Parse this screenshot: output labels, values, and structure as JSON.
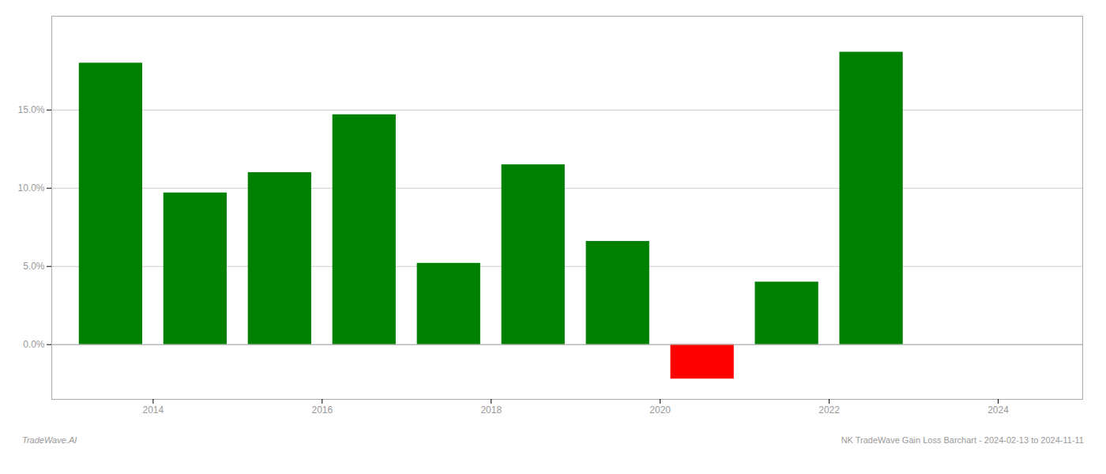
{
  "chart_data": {
    "type": "bar",
    "title": "NK TradeWave Gain Loss Barchart - 2024-02-13 to 2024-11-11",
    "annotations": [
      "TradeWave.AI"
    ],
    "x": [
      2013.5,
      2014.5,
      2015.5,
      2016.5,
      2017.5,
      2018.5,
      2019.5,
      2020.5,
      2021.5,
      2022.5,
      2023.5
    ],
    "values": [
      18.0,
      9.7,
      11.0,
      14.7,
      5.2,
      11.5,
      6.6,
      -2.2,
      4.0,
      18.7,
      0.0
    ],
    "colors": [
      "#008000",
      "#008000",
      "#008000",
      "#008000",
      "#008000",
      "#008000",
      "#008000",
      "#ff0000",
      "#008000",
      "#008000",
      "#008000"
    ],
    "xlim": [
      2012.8,
      2025.0
    ],
    "xticks": [
      2014,
      2016,
      2018,
      2020,
      2022,
      2024
    ],
    "ylim": [
      -3.5,
      21.0
    ],
    "yticks": [
      {
        "value": 0.0,
        "label": "0.0%"
      },
      {
        "value": 5.0,
        "label": "5.0%"
      },
      {
        "value": 10.0,
        "label": "10.0%"
      },
      {
        "value": 15.0,
        "label": "15.0%"
      }
    ],
    "grid": true
  }
}
